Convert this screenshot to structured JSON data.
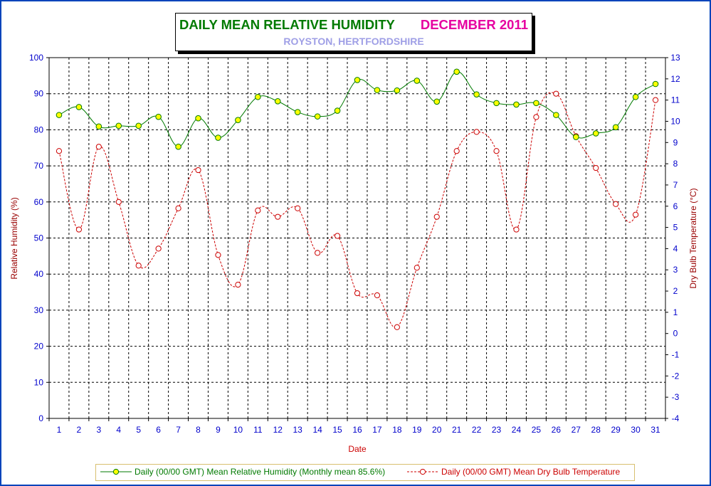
{
  "title": {
    "main": "DAILY MEAN RELATIVE HUMIDITY",
    "period": "DECEMBER 2011",
    "location": "ROYSTON, HERTFORDSHIRE"
  },
  "colors": {
    "frame": "#0044bb",
    "title_main": "#007a00",
    "title_period": "#e600a0",
    "title_location": "#9f9fe6",
    "rh_line": "#007a00",
    "rh_marker": "#ffff00",
    "temp_line": "#cc0000",
    "axis_tick_text": "#0000cc",
    "axis_title_text": "#990000",
    "x_tick_text": "#0000cc",
    "x_title_text": "#cc0000"
  },
  "chart_data": {
    "type": "line",
    "xlabel": "Date",
    "ylabel_left": "Relative Humidity (%)",
    "ylabel_right": "Dry Bulb Temperature (°C)",
    "ylim_left": [
      0,
      100
    ],
    "yticks_left": [
      0,
      10,
      20,
      30,
      40,
      50,
      60,
      70,
      80,
      90,
      100
    ],
    "ylim_right": [
      -4,
      13
    ],
    "yticks_right": [
      -4,
      -3,
      -2,
      -1,
      0,
      1,
      2,
      3,
      4,
      5,
      6,
      7,
      8,
      9,
      10,
      11,
      12,
      13
    ],
    "x": [
      1,
      2,
      3,
      4,
      5,
      6,
      7,
      8,
      9,
      10,
      11,
      12,
      13,
      14,
      15,
      16,
      17,
      18,
      19,
      20,
      21,
      22,
      23,
      24,
      25,
      26,
      27,
      28,
      29,
      30,
      31
    ],
    "grid": true,
    "legend_position": "bottom",
    "series": [
      {
        "name": "Daily (00/00 GMT) Mean Relative Humidity (Monthly mean 85.6%)",
        "axis": "left",
        "style": "solid",
        "values": [
          84.1,
          86.3,
          80.9,
          81.1,
          81.1,
          83.6,
          75.3,
          83.2,
          77.8,
          82.7,
          89.1,
          87.9,
          84.9,
          83.7,
          85.3,
          93.8,
          91.0,
          90.9,
          93.6,
          87.8,
          96.1,
          89.8,
          87.4,
          87.0,
          87.4,
          84.1,
          78.0,
          79.0,
          80.7,
          89.1,
          92.7
        ]
      },
      {
        "name": "Daily (00/00 GMT) Mean Dry Bulb Temperature",
        "axis": "right",
        "style": "dashed",
        "values": [
          8.6,
          4.9,
          8.8,
          6.2,
          3.2,
          4.0,
          5.9,
          7.7,
          3.7,
          2.3,
          5.8,
          5.5,
          5.9,
          3.8,
          4.6,
          1.9,
          1.8,
          0.3,
          3.1,
          5.5,
          8.6,
          9.5,
          8.6,
          4.9,
          10.2,
          11.3,
          9.3,
          7.8,
          6.1,
          5.6,
          11.0
        ]
      }
    ]
  }
}
